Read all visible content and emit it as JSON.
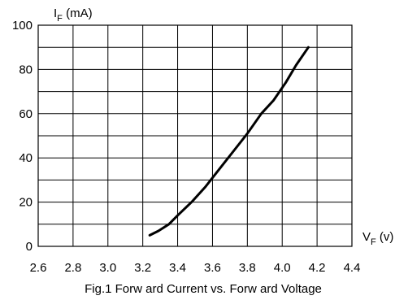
{
  "chart_data": {
    "type": "line",
    "title": "",
    "caption": "Fig.1 Forw ard Current vs. Forw ard Voltage",
    "xlabel": {
      "main": "V",
      "sub": "F",
      "unit": " (v)"
    },
    "ylabel": {
      "main": "I",
      "sub": "F",
      "unit": " (mA)"
    },
    "xlim": [
      2.6,
      4.4
    ],
    "ylim": [
      0,
      100
    ],
    "xticks": [
      "2.6",
      "2.8",
      "3.0",
      "3.2",
      "3.4",
      "3.6",
      "3.8",
      "4.0",
      "4.2",
      "4.4"
    ],
    "yticks": [
      "0",
      "20",
      "40",
      "60",
      "80",
      "100"
    ],
    "xgrid": [
      2.6,
      2.8,
      3.0,
      3.2,
      3.4,
      3.6,
      3.8,
      4.0,
      4.2,
      4.4
    ],
    "ygrid": [
      0,
      10,
      20,
      30,
      40,
      50,
      60,
      70,
      80,
      90,
      100
    ],
    "grid": true,
    "series": [
      {
        "x": [
          3.24,
          3.29,
          3.35,
          3.4,
          3.48,
          3.56,
          3.64,
          3.72,
          3.8,
          3.88,
          3.95,
          4.02,
          4.08,
          4.15
        ],
        "y": [
          5,
          7,
          10,
          14,
          20,
          27,
          35,
          43,
          51,
          60,
          66,
          74,
          82,
          90
        ]
      }
    ]
  }
}
